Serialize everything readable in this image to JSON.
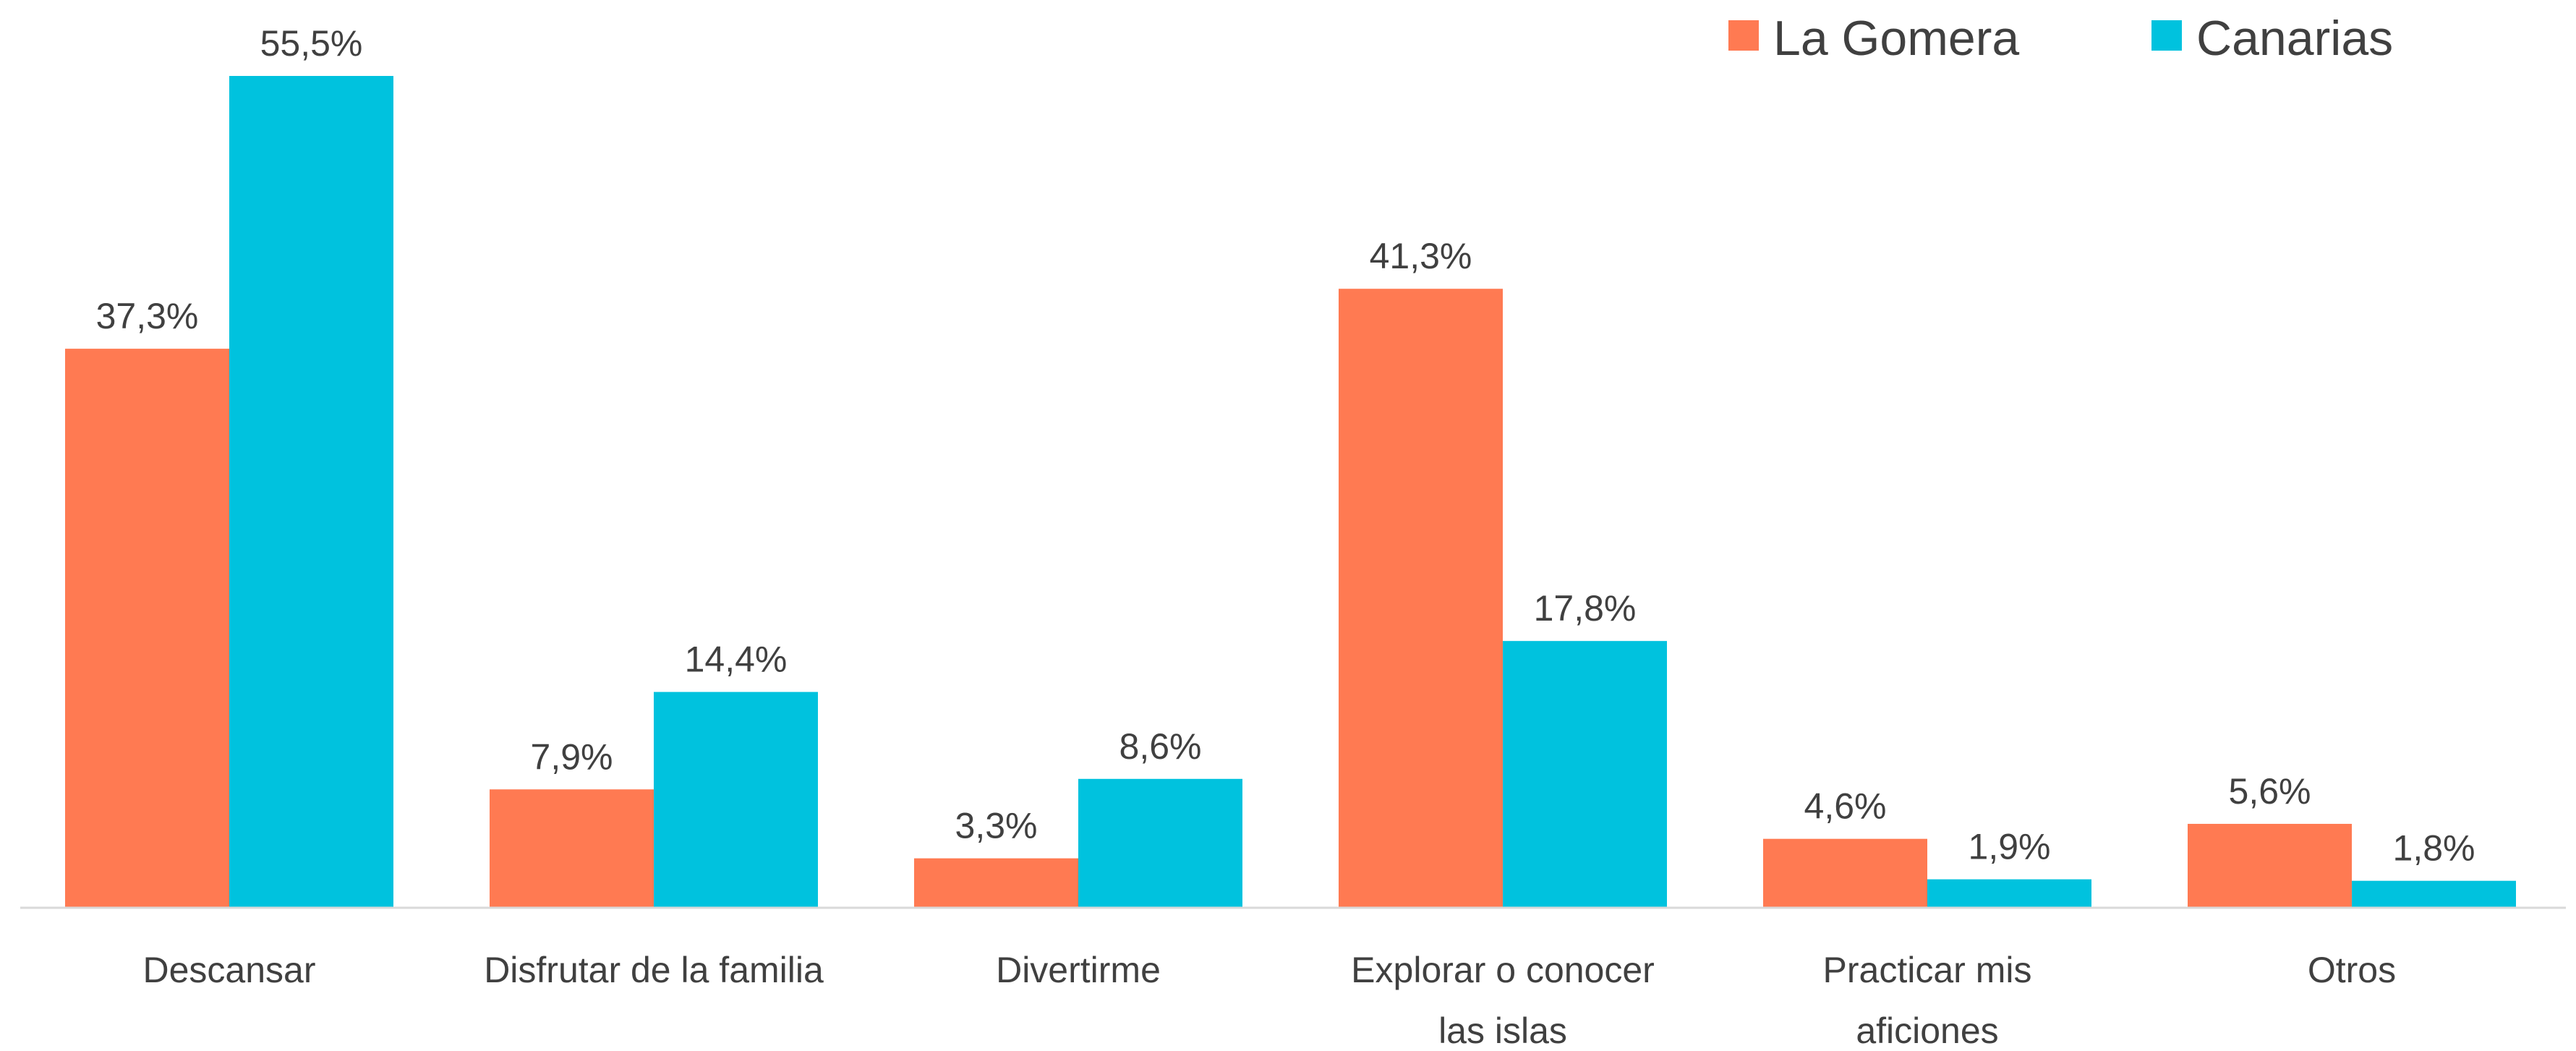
{
  "chart_data": {
    "type": "bar",
    "categories": [
      [
        "Descansar"
      ],
      [
        "Disfrutar de la familia"
      ],
      [
        "Divertirme"
      ],
      [
        "Explorar o conocer",
        "las islas"
      ],
      [
        "Practicar mis",
        "aficiones"
      ],
      [
        "Otros"
      ]
    ],
    "series": [
      {
        "name": "La Gomera",
        "color": "#FF7A52",
        "values": [
          37.3,
          7.9,
          3.3,
          41.3,
          4.6,
          5.6
        ],
        "labels": [
          "37,3%",
          "7,9%",
          "3,3%",
          "41,3%",
          "4,6%",
          "5,6%"
        ]
      },
      {
        "name": "Canarias",
        "color": "#00C2DE",
        "values": [
          55.5,
          14.4,
          8.6,
          17.8,
          1.9,
          1.8
        ],
        "labels": [
          "55,5%",
          "14,4%",
          "8,6%",
          "17,8%",
          "1,9%",
          "1,8%"
        ]
      }
    ],
    "title": "",
    "xlabel": "",
    "ylabel": "",
    "ylim": [
      0,
      55.5
    ],
    "grid": false,
    "legend": "top-right"
  }
}
